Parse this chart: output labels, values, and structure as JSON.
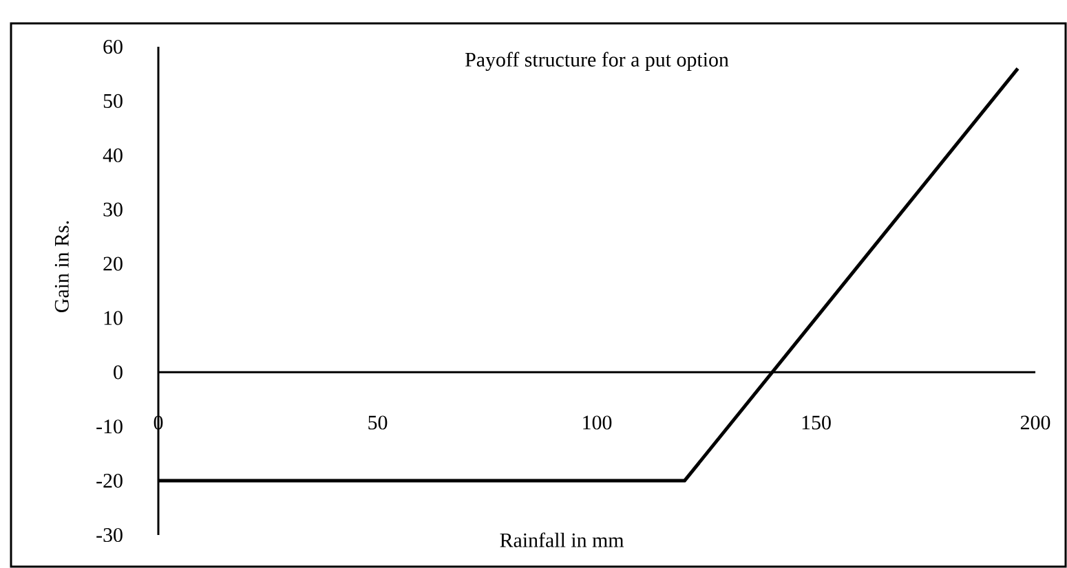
{
  "chart_data": {
    "type": "line",
    "title": "Payoff structure for a put option",
    "xlabel": "Rainfall in mm",
    "ylabel": "Gain in Rs.",
    "x": [
      0,
      120,
      196
    ],
    "values": [
      -20,
      -20,
      56
    ],
    "color": "#000000",
    "xlim": [
      0,
      200
    ],
    "ylim": [
      -30,
      60
    ],
    "xticks": [
      0,
      50,
      100,
      150,
      200
    ],
    "yticks": [
      -30,
      -20,
      -10,
      0,
      10,
      20,
      30,
      40,
      50,
      60
    ]
  }
}
